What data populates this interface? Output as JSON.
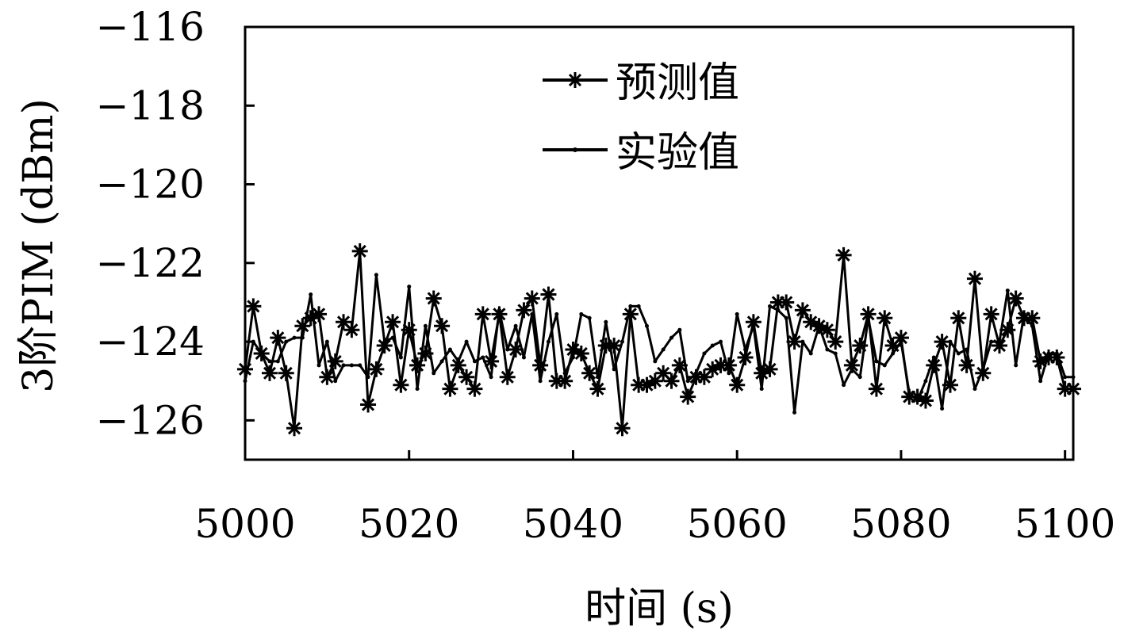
{
  "chart_data": {
    "type": "line",
    "xlabel": "时间 (s)",
    "ylabel": "3阶PIM (dBm)",
    "xlim": [
      5000,
      5101
    ],
    "ylim": [
      -127,
      -116
    ],
    "xticks": [
      5000,
      5020,
      5040,
      5060,
      5080,
      5100
    ],
    "xtick_labels": [
      "5000",
      "5020",
      "5040",
      "5060",
      "5080",
      "5100"
    ],
    "yticks": [
      -116,
      -118,
      -120,
      -122,
      -124,
      -126
    ],
    "ytick_labels": [
      "−116",
      "−118",
      "−120",
      "−122",
      "−124",
      "−126"
    ],
    "grid": false,
    "legend_position": "top-center",
    "x": [
      5000,
      5001,
      5002,
      5003,
      5004,
      5005,
      5006,
      5007,
      5008,
      5009,
      5010,
      5011,
      5012,
      5013,
      5014,
      5015,
      5016,
      5017,
      5018,
      5019,
      5020,
      5021,
      5022,
      5023,
      5024,
      5025,
      5026,
      5027,
      5028,
      5029,
      5030,
      5031,
      5032,
      5033,
      5034,
      5035,
      5036,
      5037,
      5038,
      5039,
      5040,
      5041,
      5042,
      5043,
      5044,
      5045,
      5046,
      5047,
      5048,
      5049,
      5050,
      5051,
      5052,
      5053,
      5054,
      5055,
      5056,
      5057,
      5058,
      5059,
      5060,
      5061,
      5062,
      5063,
      5064,
      5065,
      5066,
      5067,
      5068,
      5069,
      5070,
      5071,
      5072,
      5073,
      5074,
      5075,
      5076,
      5077,
      5078,
      5079,
      5080,
      5081,
      5082,
      5083,
      5084,
      5085,
      5086,
      5087,
      5088,
      5089,
      5090,
      5091,
      5092,
      5093,
      5094,
      5095,
      5096,
      5097,
      5098,
      5099,
      5100,
      5101
    ],
    "series": [
      {
        "name": "预测值",
        "marker": "asterisk",
        "values": [
          -124.7,
          -123.1,
          -124.3,
          -124.8,
          -123.9,
          -124.8,
          -126.2,
          -123.6,
          -123.4,
          -123.3,
          -124.9,
          -124.5,
          -123.5,
          -123.7,
          -121.7,
          -125.6,
          -124.7,
          -124.1,
          -123.5,
          -125.1,
          -123.7,
          -124.6,
          -124.3,
          -122.9,
          -123.6,
          -125.2,
          -124.6,
          -124.9,
          -125.2,
          -123.3,
          -124.5,
          -123.3,
          -124.9,
          -124.2,
          -123.2,
          -122.9,
          -124.6,
          -122.8,
          -125.0,
          -125.0,
          -124.2,
          -124.3,
          -124.8,
          -125.2,
          -124.1,
          -124.1,
          -126.2,
          -123.3,
          -125.1,
          -125.1,
          -125.0,
          -124.8,
          -125.0,
          -124.6,
          -125.4,
          -124.9,
          -124.9,
          -124.7,
          -124.6,
          -124.6,
          -125.1,
          -124.4,
          -123.5,
          -124.8,
          -124.7,
          -123.0,
          -123.0,
          -124.0,
          -123.2,
          -123.5,
          -123.6,
          -123.7,
          -124.0,
          -121.8,
          -124.6,
          -124.1,
          -123.3,
          -125.2,
          -123.4,
          -124.1,
          -123.9,
          -125.4,
          -125.4,
          -125.5,
          -124.6,
          -124.0,
          -125.1,
          -123.4,
          -124.6,
          -122.4,
          -124.8,
          -123.3,
          -124.1,
          -123.7,
          -122.9,
          -123.4,
          -123.4,
          -124.5,
          -124.4,
          -124.4,
          -125.2,
          -125.2
        ]
      },
      {
        "name": "实验值",
        "marker": "dot",
        "values": [
          -125.0,
          -124.0,
          -124.3,
          -124.5,
          -124.5,
          -124.0,
          -123.9,
          -123.9,
          -122.8,
          -124.6,
          -124.0,
          -125.0,
          -124.6,
          -124.6,
          -124.6,
          -124.9,
          -122.3,
          -124.0,
          -123.9,
          -124.4,
          -122.6,
          -125.2,
          -123.6,
          -124.8,
          -124.5,
          -124.2,
          -124.5,
          -124.0,
          -124.5,
          -124.4,
          -124.9,
          -123.2,
          -124.2,
          -123.6,
          -124.4,
          -123.3,
          -125.0,
          -124.0,
          -123.3,
          -124.8,
          -124.4,
          -123.3,
          -123.4,
          -124.9,
          -123.5,
          -124.7,
          -124.0,
          -123.1,
          -123.1,
          -123.6,
          -124.5,
          -124.2,
          -123.9,
          -123.7,
          -125.0,
          -124.8,
          -124.3,
          -124.1,
          -124.0,
          -124.8,
          -123.3,
          -124.2,
          -123.6,
          -125.2,
          -123.1,
          -123.2,
          -123.4,
          -125.8,
          -124.0,
          -124.3,
          -123.6,
          -124.2,
          -124.3,
          -125.1,
          -124.7,
          -124.9,
          -123.4,
          -124.5,
          -124.6,
          -124.3,
          -124.0,
          -125.3,
          -125.5,
          -125.0,
          -124.4,
          -125.7,
          -124.0,
          -124.3,
          -124.2,
          -125.2,
          -124.7,
          -124.0,
          -124.0,
          -122.7,
          -124.6,
          -123.3,
          -123.6,
          -125.0,
          -124.3,
          -124.3,
          -124.9,
          -124.9
        ]
      }
    ]
  }
}
